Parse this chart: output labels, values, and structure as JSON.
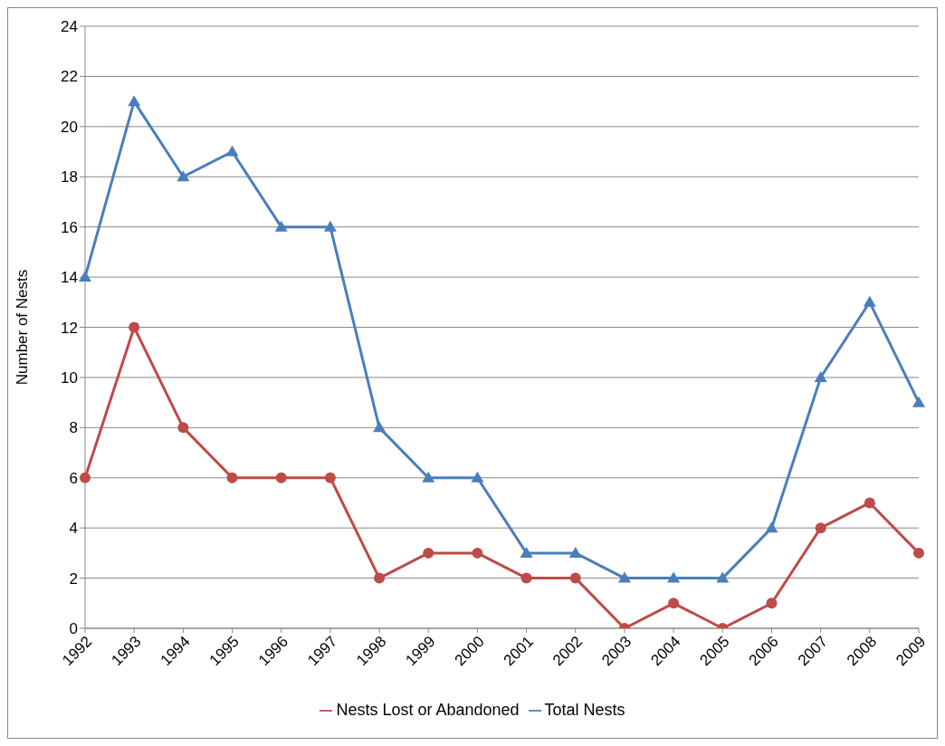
{
  "chart_data": {
    "type": "line",
    "ylabel": "Number of Nests",
    "categories": [
      "1992",
      "1993",
      "1994",
      "1995",
      "1996",
      "1997",
      "1998",
      "1999",
      "2000",
      "2001",
      "2002",
      "2003",
      "2004",
      "2005",
      "2006",
      "2007",
      "2008",
      "2009"
    ],
    "series": [
      {
        "name": "Total Nests",
        "color": "#4a7ebb",
        "marker": "triangle",
        "values": [
          14,
          21,
          18,
          19,
          16,
          16,
          8,
          6,
          6,
          3,
          3,
          2,
          2,
          2,
          4,
          10,
          13,
          9
        ]
      },
      {
        "name": "Nests Lost or Abandoned",
        "color": "#be4b48",
        "marker": "circle",
        "values": [
          6,
          12,
          8,
          6,
          6,
          6,
          2,
          3,
          3,
          2,
          2,
          0,
          1,
          0,
          1,
          4,
          5,
          3
        ]
      }
    ],
    "ylim": [
      0,
      24
    ],
    "yticks": [
      0,
      2,
      4,
      6,
      8,
      10,
      12,
      14,
      16,
      18,
      20,
      22,
      24
    ],
    "grid": "y",
    "legend": "bottom",
    "line_style": "solid"
  }
}
